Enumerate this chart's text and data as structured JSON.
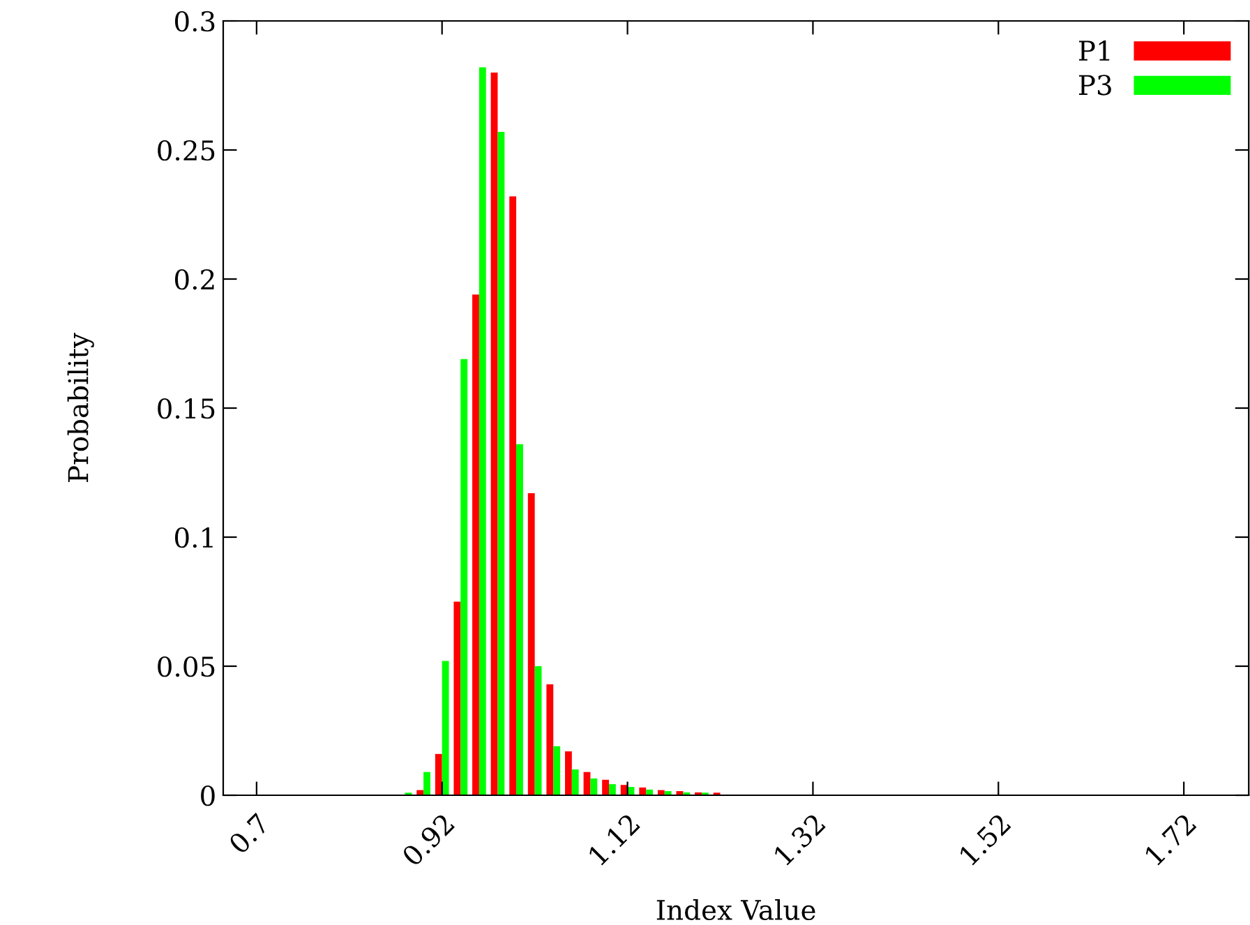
{
  "chart_data": {
    "type": "bar",
    "xlabel": "Index Value",
    "ylabel": "Probability",
    "categories": [
      "0.7",
      null,
      null,
      null,
      null,
      null,
      null,
      null,
      null,
      null,
      "0.92",
      null,
      null,
      null,
      null,
      null,
      null,
      null,
      null,
      null,
      "1.12",
      null,
      null,
      null,
      null,
      null,
      null,
      null,
      null,
      null,
      "1.32",
      null,
      null,
      null,
      null,
      null,
      null,
      null,
      null,
      null,
      "1.52",
      null,
      null,
      null,
      null,
      null,
      null,
      null,
      null,
      null,
      "1.72",
      null,
      null,
      null
    ],
    "series": [
      {
        "name": "P1",
        "color": "#ff0000",
        "values": [
          0,
          0,
          0,
          0,
          0,
          0,
          0,
          0,
          0,
          0.002,
          0.016,
          0.075,
          0.194,
          0.28,
          0.232,
          0.117,
          0.043,
          0.017,
          0.009,
          0.006,
          0.004,
          0.003,
          0.002,
          0.0016,
          0.0011,
          0.001,
          0,
          0,
          0,
          0,
          0,
          0,
          0,
          0,
          0,
          0,
          0,
          0,
          0,
          0,
          0,
          0,
          0,
          0,
          0,
          0,
          0,
          0,
          0,
          0,
          0,
          0,
          0,
          0
        ]
      },
      {
        "name": "P3",
        "color": "#00ff00",
        "values": [
          0,
          0,
          0,
          0,
          0,
          0,
          0,
          0,
          0.001,
          0.009,
          0.052,
          0.169,
          0.282,
          0.257,
          0.136,
          0.05,
          0.019,
          0.01,
          0.0065,
          0.0043,
          0.0032,
          0.0022,
          0.0016,
          0.0011,
          0.001,
          0,
          0,
          0,
          0,
          0,
          0,
          0,
          0,
          0,
          0,
          0,
          0,
          0,
          0,
          0,
          0,
          0,
          0,
          0,
          0,
          0,
          0,
          0,
          0,
          0,
          0,
          0,
          0,
          0
        ]
      }
    ],
    "ylim": [
      0,
      0.3
    ],
    "yticks": [
      0,
      0.05,
      0.1,
      0.15,
      0.2,
      0.25,
      0.3
    ],
    "legend": "top right"
  }
}
